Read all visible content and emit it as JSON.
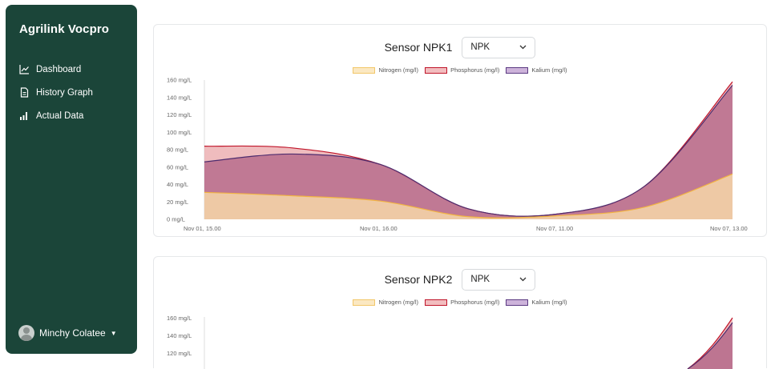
{
  "sidebar": {
    "brand": "Agrilink Vocpro",
    "items": [
      {
        "label": "Dashboard",
        "icon": "line-chart-icon"
      },
      {
        "label": "History Graph",
        "icon": "document-icon"
      },
      {
        "label": "Actual Data",
        "icon": "bar-signal-icon"
      }
    ],
    "user": "Minchy Colatee"
  },
  "charts": [
    {
      "title": "Sensor NPK1",
      "select": "NPK"
    },
    {
      "title": "Sensor NPK2",
      "select": "NPK"
    }
  ],
  "legend": [
    "Nitrogen (mg/l)",
    "Phosphorus (mg/l)",
    "Kalium (mg/l)"
  ],
  "colors": {
    "sidebar": "#1b4539",
    "nitrogen_fill": "#f6d7a8",
    "nitrogen_line": "#f2b441",
    "phosphorus_fill": "#e9a6a8",
    "phosphorus_line": "#c0152a",
    "kalium_fill": "#b4688a",
    "kalium_line": "#4d2c6e"
  },
  "chart_data": [
    {
      "type": "area",
      "title": "Sensor NPK1",
      "ylim": [
        0,
        160
      ],
      "yticks": [
        "0 mg/L",
        "20 mg/L",
        "40 mg/L",
        "60 mg/L",
        "80 mg/L",
        "100 mg/L",
        "120 mg/L",
        "140 mg/L",
        "160 mg/L"
      ],
      "xticks": [
        "Nov 01, 15.00",
        "Nov 01, 16.00",
        "Nov 07, 11.00",
        "Nov 07, 13.00"
      ],
      "x": [
        0,
        0.5,
        1,
        1.5,
        2,
        2.5,
        3
      ],
      "series": [
        {
          "name": "Nitrogen (mg/l)",
          "values": [
            31,
            27,
            21,
            3,
            4,
            14,
            52
          ]
        },
        {
          "name": "Phosphorus (mg/l)",
          "values": [
            84,
            82,
            63,
            12,
            6,
            38,
            158
          ]
        },
        {
          "name": "Kalium (mg/l)",
          "values": [
            66,
            75,
            63,
            12,
            6,
            38,
            154
          ]
        }
      ]
    },
    {
      "type": "area",
      "title": "Sensor NPK2",
      "ylim": [
        0,
        160
      ],
      "yticks": [
        "120 mg/L",
        "140 mg/L",
        "160 mg/L"
      ],
      "series": [
        {
          "name": "Nitrogen (mg/l)",
          "values": []
        },
        {
          "name": "Phosphorus (mg/l)",
          "values": []
        },
        {
          "name": "Kalium (mg/l)",
          "values": []
        }
      ]
    }
  ]
}
